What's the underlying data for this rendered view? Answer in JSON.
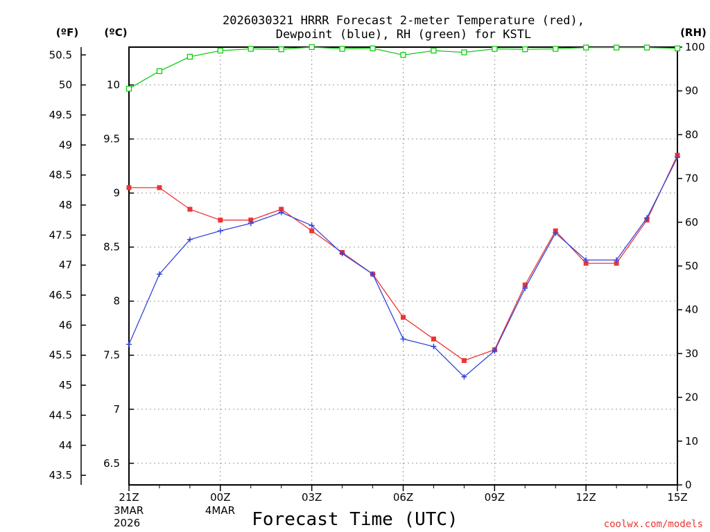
{
  "chart_data": {
    "type": "line",
    "title_line1": "2026030321 HRRR Forecast 2-meter Temperature (red),",
    "title_line2": "Dewpoint (blue), RH (green) for KSTL",
    "xlabel": "Forecast Time (UTC)",
    "credit": "coolwx.com/models",
    "units": {
      "fahrenheit": "(ºF)",
      "celsius": "(ºC)",
      "rh": "(RH)"
    },
    "celsius_axis": {
      "range": [
        6.3,
        10.35
      ],
      "ticks": [
        "6.5",
        "7",
        "7.5",
        "8",
        "8.5",
        "9",
        "9.5",
        "10"
      ]
    },
    "fahrenheit_axis": {
      "range": [
        43.34,
        50.63
      ],
      "ticks": [
        "43.5",
        "44",
        "44.5",
        "45",
        "45.5",
        "46",
        "46.5",
        "47",
        "47.5",
        "48",
        "48.5",
        "49",
        "49.5",
        "50",
        "50.5"
      ]
    },
    "rh_axis": {
      "range": [
        0,
        100
      ],
      "ticks": [
        "0",
        "10",
        "20",
        "30",
        "40",
        "50",
        "60",
        "70",
        "80",
        "90",
        "100"
      ]
    },
    "x_range": [
      0,
      18
    ],
    "x_ticks": [
      {
        "hour": 0,
        "label": "21Z",
        "date1": "3MAR",
        "date2": "2026"
      },
      {
        "hour": 3,
        "label": "00Z",
        "date1": "4MAR"
      },
      {
        "hour": 6,
        "label": "03Z"
      },
      {
        "hour": 9,
        "label": "06Z"
      },
      {
        "hour": 12,
        "label": "09Z"
      },
      {
        "hour": 15,
        "label": "12Z"
      },
      {
        "hour": 18,
        "label": "15Z"
      }
    ],
    "grid": true,
    "series": [
      {
        "name": "Temperature",
        "axis": "celsius",
        "color": "#ee3333",
        "marker": "filled-square",
        "values": [
          9.05,
          9.05,
          8.85,
          8.75,
          8.75,
          8.85,
          8.65,
          8.45,
          8.25,
          7.85,
          7.65,
          7.45,
          7.55,
          8.15,
          8.65,
          8.35,
          8.35,
          8.75,
          9.35
        ]
      },
      {
        "name": "Dewpoint",
        "axis": "celsius",
        "color": "#3344dd",
        "marker": "plus",
        "values": [
          7.6,
          8.25,
          8.57,
          8.65,
          8.72,
          8.82,
          8.7,
          8.44,
          8.25,
          7.65,
          7.58,
          7.3,
          7.54,
          8.12,
          8.63,
          8.38,
          8.38,
          8.77,
          9.33
        ]
      },
      {
        "name": "RH",
        "axis": "rh",
        "color": "#11cc11",
        "marker": "open-square",
        "values": [
          90.5,
          94.5,
          97.8,
          99.2,
          99.6,
          99.5,
          100,
          99.6,
          99.7,
          98.2,
          99.2,
          98.8,
          99.6,
          99.5,
          99.6,
          99.9,
          99.9,
          99.9,
          99.7
        ]
      }
    ]
  }
}
